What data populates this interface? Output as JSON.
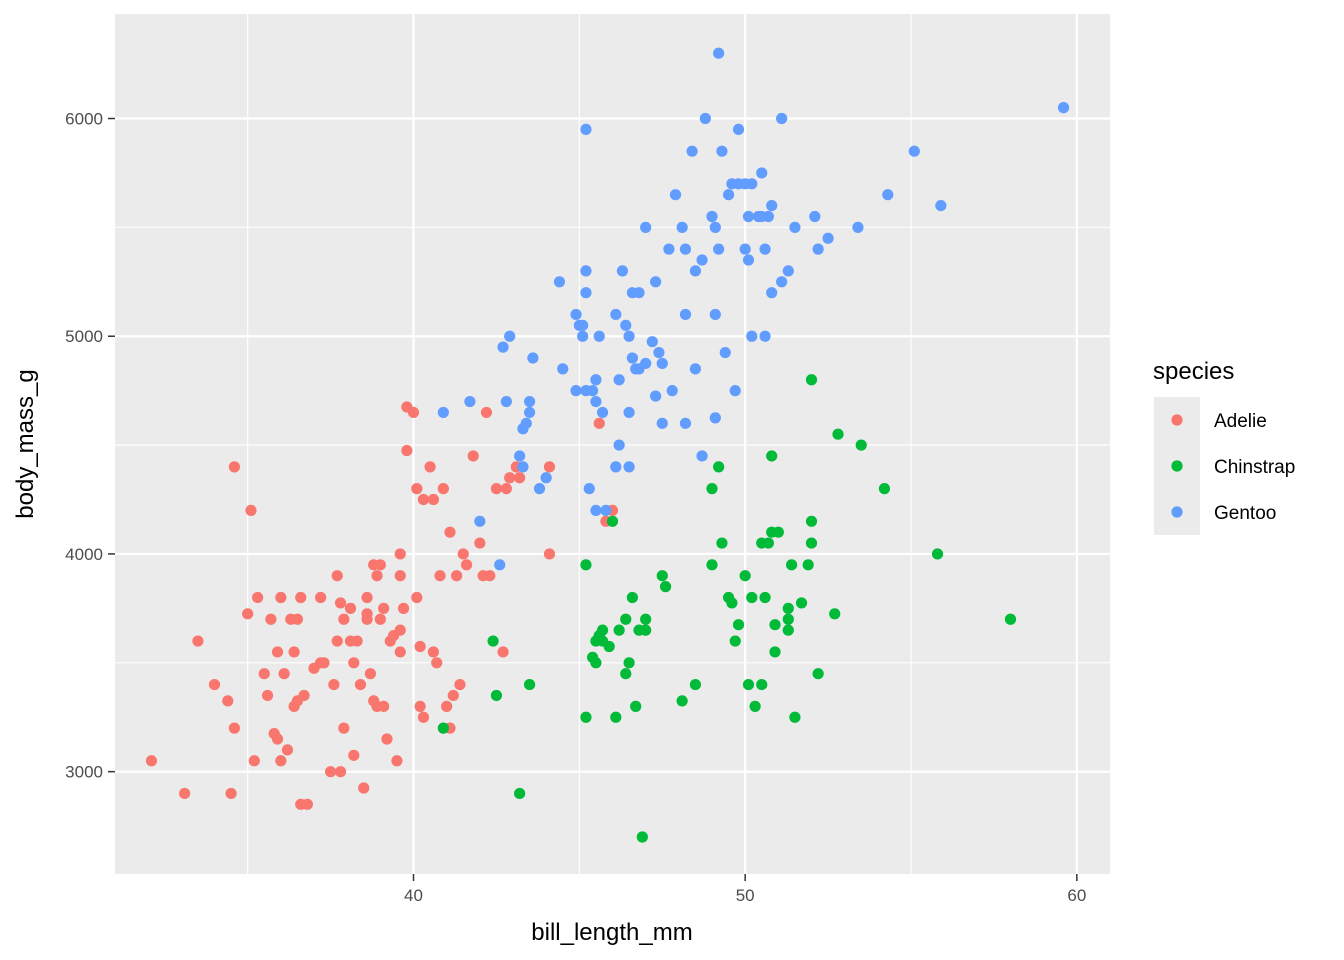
{
  "chart_data": {
    "type": "scatter",
    "xlabel": "bill_length_mm",
    "ylabel": "body_mass_g",
    "xlim": [
      31.0,
      61.0
    ],
    "ylim": [
      2530,
      6480
    ],
    "xticks": [
      40,
      50,
      60
    ],
    "yticks": [
      3000,
      4000,
      5000,
      6000
    ],
    "grid": true,
    "legend": {
      "title": "species",
      "placement": "right"
    },
    "series": [
      {
        "name": "Adelie",
        "color": "#F8766D",
        "points": [
          [
            32.1,
            3050
          ],
          [
            33.1,
            2900
          ],
          [
            33.5,
            3600
          ],
          [
            34.0,
            3400
          ],
          [
            34.4,
            3325
          ],
          [
            34.5,
            2900
          ],
          [
            34.6,
            3200
          ],
          [
            34.6,
            4400
          ],
          [
            35.0,
            3725
          ],
          [
            35.1,
            4200
          ],
          [
            35.2,
            3050
          ],
          [
            35.3,
            3800
          ],
          [
            35.5,
            3450
          ],
          [
            35.6,
            3350
          ],
          [
            35.7,
            3700
          ],
          [
            35.8,
            3175
          ],
          [
            35.9,
            3150
          ],
          [
            35.9,
            3550
          ],
          [
            36.0,
            3050
          ],
          [
            36.0,
            3800
          ],
          [
            36.1,
            3450
          ],
          [
            36.2,
            3100
          ],
          [
            36.3,
            3700
          ],
          [
            36.4,
            3300
          ],
          [
            36.4,
            3550
          ],
          [
            36.5,
            3325
          ],
          [
            36.6,
            3800
          ],
          [
            36.6,
            2850
          ],
          [
            36.7,
            3350
          ],
          [
            36.8,
            2850
          ],
          [
            37.0,
            3475
          ],
          [
            37.2,
            3500
          ],
          [
            37.2,
            3800
          ],
          [
            37.3,
            3500
          ],
          [
            37.5,
            3000
          ],
          [
            37.6,
            3400
          ],
          [
            37.7,
            3900
          ],
          [
            37.8,
            3000
          ],
          [
            37.8,
            3775
          ],
          [
            37.9,
            3200
          ],
          [
            37.9,
            3700
          ],
          [
            38.1,
            3750
          ],
          [
            38.1,
            3600
          ],
          [
            38.2,
            3500
          ],
          [
            38.2,
            3075
          ],
          [
            38.3,
            3600
          ],
          [
            38.4,
            3400
          ],
          [
            38.5,
            2925
          ],
          [
            38.6,
            3800
          ],
          [
            38.6,
            3725
          ],
          [
            38.7,
            3450
          ],
          [
            38.8,
            3325
          ],
          [
            38.8,
            3950
          ],
          [
            38.9,
            3900
          ],
          [
            38.9,
            3300
          ],
          [
            39.0,
            3950
          ],
          [
            39.1,
            3750
          ],
          [
            39.1,
            3300
          ],
          [
            39.2,
            3150
          ],
          [
            39.3,
            3600
          ],
          [
            39.4,
            3625
          ],
          [
            39.5,
            3050
          ],
          [
            39.6,
            3650
          ],
          [
            39.6,
            3550
          ],
          [
            39.7,
            3750
          ],
          [
            39.8,
            4675
          ],
          [
            39.8,
            4475
          ],
          [
            40.0,
            4650
          ],
          [
            40.1,
            3800
          ],
          [
            40.2,
            3300
          ],
          [
            40.2,
            3575
          ],
          [
            40.3,
            3250
          ],
          [
            40.5,
            4400
          ],
          [
            40.6,
            4250
          ],
          [
            40.6,
            3550
          ],
          [
            40.7,
            3500
          ],
          [
            40.8,
            3900
          ],
          [
            40.9,
            4300
          ],
          [
            41.0,
            3300
          ],
          [
            41.1,
            4100
          ],
          [
            41.1,
            3200
          ],
          [
            41.2,
            3350
          ],
          [
            41.3,
            3900
          ],
          [
            41.4,
            3400
          ],
          [
            41.5,
            4000
          ],
          [
            41.6,
            3950
          ],
          [
            41.8,
            4450
          ],
          [
            42.0,
            4050
          ],
          [
            42.1,
            3900
          ],
          [
            42.2,
            4650
          ],
          [
            42.3,
            3900
          ],
          [
            42.5,
            4300
          ],
          [
            42.7,
            3550
          ],
          [
            42.8,
            4300
          ],
          [
            42.9,
            4350
          ],
          [
            43.1,
            4400
          ],
          [
            43.2,
            4350
          ],
          [
            44.1,
            4000
          ],
          [
            44.1,
            4400
          ],
          [
            45.6,
            4600
          ],
          [
            45.8,
            4150
          ],
          [
            46.0,
            4200
          ],
          [
            39.6,
            3900
          ],
          [
            40.1,
            4300
          ],
          [
            37.7,
            3600
          ],
          [
            40.3,
            4250
          ],
          [
            39.0,
            3700
          ],
          [
            36.5,
            3700
          ],
          [
            38.6,
            3700
          ],
          [
            39.6,
            4000
          ]
        ]
      },
      {
        "name": "Chinstrap",
        "color": "#00BA38",
        "points": [
          [
            40.9,
            3200
          ],
          [
            42.4,
            3600
          ],
          [
            42.5,
            3350
          ],
          [
            43.2,
            2900
          ],
          [
            43.5,
            3400
          ],
          [
            45.2,
            3250
          ],
          [
            45.2,
            3950
          ],
          [
            45.4,
            3525
          ],
          [
            45.5,
            3500
          ],
          [
            45.6,
            3625
          ],
          [
            45.7,
            3600
          ],
          [
            45.7,
            3650
          ],
          [
            45.9,
            3575
          ],
          [
            46.0,
            4150
          ],
          [
            46.1,
            3250
          ],
          [
            46.2,
            3650
          ],
          [
            46.4,
            3700
          ],
          [
            46.4,
            3450
          ],
          [
            46.5,
            3500
          ],
          [
            46.6,
            3800
          ],
          [
            46.7,
            3300
          ],
          [
            46.8,
            3650
          ],
          [
            46.9,
            2700
          ],
          [
            47.0,
            3700
          ],
          [
            47.5,
            3900
          ],
          [
            47.6,
            3850
          ],
          [
            48.1,
            3325
          ],
          [
            48.5,
            3400
          ],
          [
            49.0,
            4300
          ],
          [
            49.0,
            3950
          ],
          [
            49.2,
            4400
          ],
          [
            49.3,
            4050
          ],
          [
            49.5,
            3800
          ],
          [
            49.6,
            3775
          ],
          [
            49.7,
            3600
          ],
          [
            49.8,
            3675
          ],
          [
            50.0,
            3900
          ],
          [
            50.1,
            3400
          ],
          [
            50.2,
            3800
          ],
          [
            50.3,
            3300
          ],
          [
            50.5,
            3400
          ],
          [
            50.5,
            4050
          ],
          [
            50.6,
            3800
          ],
          [
            50.7,
            4050
          ],
          [
            50.8,
            4100
          ],
          [
            50.8,
            4450
          ],
          [
            50.9,
            3675
          ],
          [
            50.9,
            3550
          ],
          [
            51.0,
            4100
          ],
          [
            51.3,
            3750
          ],
          [
            51.3,
            3700
          ],
          [
            51.3,
            3650
          ],
          [
            51.4,
            3950
          ],
          [
            51.5,
            3250
          ],
          [
            51.7,
            3775
          ],
          [
            52.0,
            4800
          ],
          [
            52.0,
            4150
          ],
          [
            52.0,
            4050
          ],
          [
            52.2,
            3450
          ],
          [
            52.7,
            3725
          ],
          [
            52.8,
            4550
          ],
          [
            53.5,
            4500
          ],
          [
            54.2,
            4300
          ],
          [
            55.8,
            4000
          ],
          [
            58.0,
            3700
          ],
          [
            51.9,
            3950
          ],
          [
            45.5,
            3600
          ],
          [
            47.0,
            3650
          ]
        ]
      },
      {
        "name": "Gentoo",
        "color": "#619CFF",
        "points": [
          [
            40.9,
            4650
          ],
          [
            41.7,
            4700
          ],
          [
            42.0,
            4150
          ],
          [
            42.6,
            3950
          ],
          [
            42.7,
            4950
          ],
          [
            42.8,
            4700
          ],
          [
            42.9,
            5000
          ],
          [
            43.2,
            4450
          ],
          [
            43.3,
            4400
          ],
          [
            43.3,
            4575
          ],
          [
            43.4,
            4600
          ],
          [
            43.5,
            4650
          ],
          [
            43.5,
            4700
          ],
          [
            43.6,
            4900
          ],
          [
            43.8,
            4300
          ],
          [
            44.0,
            4350
          ],
          [
            44.4,
            5250
          ],
          [
            44.5,
            4850
          ],
          [
            44.9,
            5100
          ],
          [
            44.9,
            4750
          ],
          [
            45.0,
            5050
          ],
          [
            45.1,
            5000
          ],
          [
            45.1,
            5050
          ],
          [
            45.2,
            4750
          ],
          [
            45.2,
            5200
          ],
          [
            45.2,
            5300
          ],
          [
            45.2,
            5950
          ],
          [
            45.3,
            4300
          ],
          [
            45.4,
            4750
          ],
          [
            45.5,
            4800
          ],
          [
            45.5,
            4200
          ],
          [
            45.5,
            4700
          ],
          [
            45.6,
            5000
          ],
          [
            45.7,
            4650
          ],
          [
            45.8,
            4200
          ],
          [
            46.1,
            5100
          ],
          [
            46.2,
            4500
          ],
          [
            46.2,
            4800
          ],
          [
            46.3,
            5300
          ],
          [
            46.4,
            5050
          ],
          [
            46.5,
            4400
          ],
          [
            46.5,
            5000
          ],
          [
            46.6,
            4900
          ],
          [
            46.6,
            5200
          ],
          [
            46.7,
            4850
          ],
          [
            46.8,
            5200
          ],
          [
            46.8,
            4850
          ],
          [
            47.0,
            4875
          ],
          [
            47.2,
            4975
          ],
          [
            47.3,
            4725
          ],
          [
            47.3,
            5250
          ],
          [
            47.4,
            4925
          ],
          [
            47.5,
            4875
          ],
          [
            47.5,
            4600
          ],
          [
            47.7,
            5400
          ],
          [
            47.8,
            4750
          ],
          [
            47.9,
            5650
          ],
          [
            48.1,
            5500
          ],
          [
            48.2,
            4600
          ],
          [
            48.2,
            5100
          ],
          [
            48.4,
            5850
          ],
          [
            48.5,
            5300
          ],
          [
            48.5,
            4850
          ],
          [
            48.7,
            5350
          ],
          [
            48.7,
            4450
          ],
          [
            48.8,
            6000
          ],
          [
            49.0,
            5550
          ],
          [
            49.1,
            5500
          ],
          [
            49.1,
            4625
          ],
          [
            49.1,
            5100
          ],
          [
            49.2,
            6300
          ],
          [
            49.3,
            5850
          ],
          [
            49.4,
            4925
          ],
          [
            49.5,
            5650
          ],
          [
            49.6,
            5700
          ],
          [
            49.7,
            4750
          ],
          [
            49.8,
            5950
          ],
          [
            49.8,
            5700
          ],
          [
            50.0,
            5400
          ],
          [
            50.0,
            5700
          ],
          [
            50.1,
            5550
          ],
          [
            50.1,
            5350
          ],
          [
            50.2,
            5000
          ],
          [
            50.2,
            5700
          ],
          [
            50.4,
            5550
          ],
          [
            50.5,
            5550
          ],
          [
            50.5,
            5750
          ],
          [
            50.6,
            5400
          ],
          [
            50.6,
            5000
          ],
          [
            50.7,
            5550
          ],
          [
            50.8,
            5600
          ],
          [
            50.8,
            5200
          ],
          [
            51.1,
            5250
          ],
          [
            51.1,
            6000
          ],
          [
            51.3,
            5300
          ],
          [
            51.5,
            5500
          ],
          [
            52.1,
            5550
          ],
          [
            52.2,
            5400
          ],
          [
            52.5,
            5450
          ],
          [
            53.4,
            5500
          ],
          [
            54.3,
            5650
          ],
          [
            55.1,
            5850
          ],
          [
            55.9,
            5600
          ],
          [
            59.6,
            6050
          ],
          [
            48.2,
            5400
          ],
          [
            46.5,
            4650
          ],
          [
            49.2,
            5400
          ],
          [
            47.0,
            5500
          ],
          [
            46.1,
            4400
          ]
        ]
      }
    ]
  }
}
